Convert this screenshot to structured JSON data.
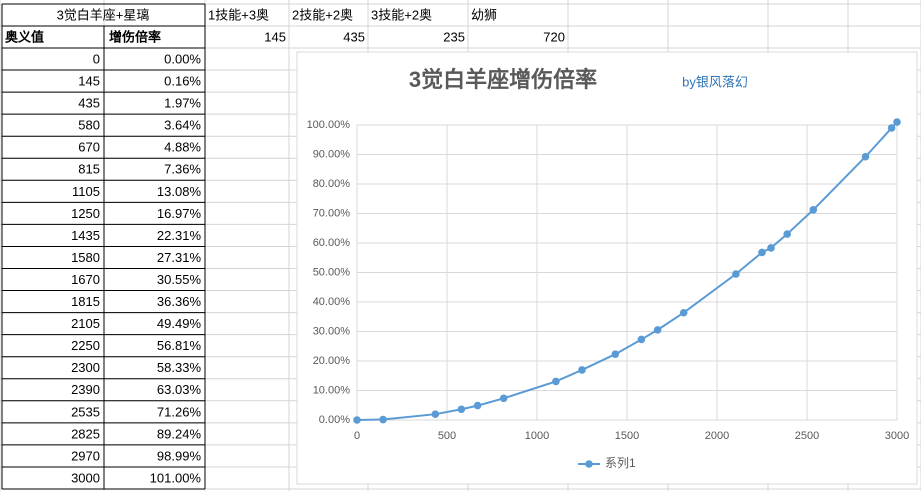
{
  "table": {
    "header": [
      "3觉白羊座+星璃",
      "1技能+3奥",
      "2技能+2奥",
      "3技能+2奥",
      "幼狮"
    ],
    "subheader": [
      "奥义值",
      "增伤倍率",
      145,
      435,
      235,
      720
    ],
    "rows": [
      [
        0,
        "0.00%"
      ],
      [
        145,
        "0.16%"
      ],
      [
        435,
        "1.97%"
      ],
      [
        580,
        "3.64%"
      ],
      [
        670,
        "4.88%"
      ],
      [
        815,
        "7.36%"
      ],
      [
        1105,
        "13.08%"
      ],
      [
        1250,
        "16.97%"
      ],
      [
        1435,
        "22.31%"
      ],
      [
        1580,
        "27.31%"
      ],
      [
        1670,
        "30.55%"
      ],
      [
        1815,
        "36.36%"
      ],
      [
        2105,
        "49.49%"
      ],
      [
        2250,
        "56.81%"
      ],
      [
        2300,
        "58.33%"
      ],
      [
        2390,
        "63.03%"
      ],
      [
        2535,
        "71.26%"
      ],
      [
        2825,
        "89.24%"
      ],
      [
        2970,
        "98.99%"
      ],
      [
        3000,
        "101.00%"
      ]
    ]
  },
  "chart_data": {
    "type": "scatter",
    "title": "3觉白羊座增伤倍率",
    "subtitle": "by银风落幻",
    "x": [
      0,
      145,
      435,
      580,
      670,
      815,
      1105,
      1250,
      1435,
      1580,
      1670,
      1815,
      2105,
      2250,
      2300,
      2390,
      2535,
      2825,
      2970,
      3000
    ],
    "series": [
      {
        "name": "系列1",
        "color": "#5b9bd5",
        "values": [
          0,
          0.16,
          1.97,
          3.64,
          4.88,
          7.36,
          13.08,
          16.97,
          22.31,
          27.31,
          30.55,
          36.36,
          49.49,
          56.81,
          58.33,
          63.03,
          71.26,
          89.24,
          98.99,
          101
        ]
      }
    ],
    "xlim": [
      0,
      3000
    ],
    "xticks": [
      0,
      500,
      1000,
      1500,
      2000,
      2500,
      3000
    ],
    "ylim": [
      0,
      100
    ],
    "yticks": [
      {
        "value": 0,
        "label": "0.00%"
      },
      {
        "value": 10,
        "label": "10.00%"
      },
      {
        "value": 20,
        "label": "20.00%"
      },
      {
        "value": 30,
        "label": "30.00%"
      },
      {
        "value": 40,
        "label": "40.00%"
      },
      {
        "value": 50,
        "label": "50.00%"
      },
      {
        "value": 60,
        "label": "60.00%"
      },
      {
        "value": 70,
        "label": "70.00%"
      },
      {
        "value": 80,
        "label": "80.00%"
      },
      {
        "value": 90,
        "label": "90.00%"
      },
      {
        "value": 100,
        "label": "100.00%"
      }
    ],
    "grid": true,
    "legend": "bottom"
  }
}
